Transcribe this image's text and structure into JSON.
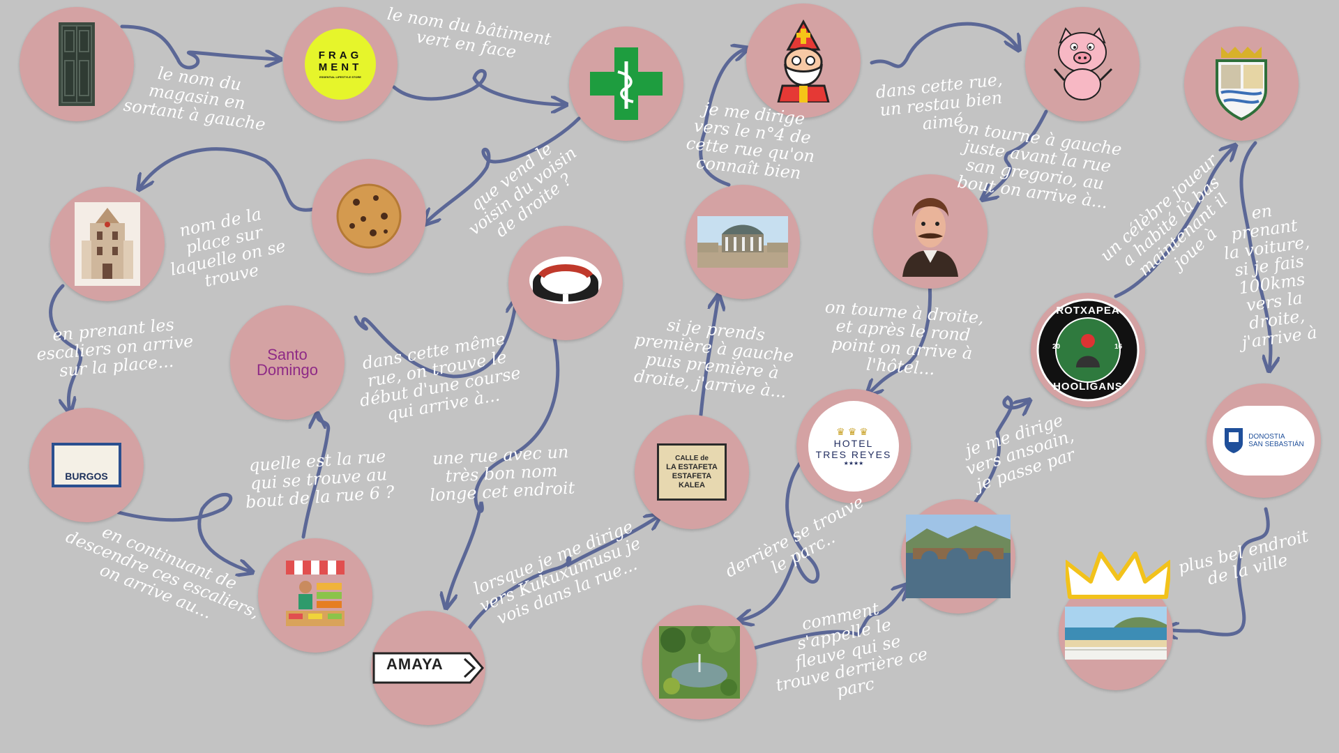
{
  "colors": {
    "background": "#c3c3c3",
    "node": "#d4a2a3",
    "arrow": "#5b6796",
    "text": "#ffffff"
  },
  "nodes": {
    "door": {
      "icon": "door-icon"
    },
    "fragment": {
      "icon": "fragment-logo",
      "text": "FRAG\nMENT",
      "tagline": "ESSENTIAL LIFESTYLE STORE"
    },
    "pharmacy": {
      "icon": "pharmacy-cross-icon"
    },
    "cookie": {
      "icon": "cookie-icon"
    },
    "townhall": {
      "icon": "town-hall-icon"
    },
    "santo": {
      "icon": "santo-domingo-logo",
      "line1": "Santo",
      "line2": "Domingo"
    },
    "bullring": {
      "icon": "bullring-icon"
    },
    "burgos": {
      "icon": "street-sign-icon",
      "text": "BURGOS"
    },
    "market": {
      "icon": "market-stall-icon"
    },
    "amaya": {
      "icon": "street-sign-icon",
      "text": "AMAYA"
    },
    "estafeta": {
      "icon": "street-sign-icon",
      "line1": "CALLE de",
      "line2": "LA ESTAFETA",
      "line3": "ESTAFETA",
      "line4": "KALEA"
    },
    "kiosk": {
      "icon": "bandstand-icon"
    },
    "bishop": {
      "icon": "bishop-icon"
    },
    "pig": {
      "icon": "pig-icon"
    },
    "portrait": {
      "icon": "portrait-icon"
    },
    "hotel": {
      "icon": "hotel-logo",
      "line1": "HOTEL",
      "line2": "TRES REYES",
      "stars": "★★★★"
    },
    "garden": {
      "icon": "garden-icon"
    },
    "bridge": {
      "icon": "bridge-icon"
    },
    "hooligans": {
      "icon": "hooligans-badge",
      "top": "ROTXAPEA",
      "bottom": "HOOLIGANS",
      "year_left": "20",
      "year_right": "16"
    },
    "shield": {
      "icon": "coat-of-arms-icon"
    },
    "donostia": {
      "icon": "donostia-logo",
      "line1": "DONOSTIA",
      "line2": "SAN SEBASTIÁN"
    },
    "beach": {
      "icon": "beach-icon"
    }
  },
  "clues": {
    "c1": "le nom du\nmagasin en\nsortant à gauche",
    "c2": "le nom du bâtiment\nvert en face",
    "c3": "que vend le\nvoisin du voisin\nde droite ?",
    "c4": "nom de la\nplace sur\nlaquelle on se\ntrouve",
    "c5": "en prenant les\nescaliers on arrive\nsur la place...",
    "c6": "dans cette même\nrue, on trouve le\ndébut d'une course\nqui arrive à...",
    "c7": "quelle est la rue\nqui se trouve au\nbout de la rue 6 ?",
    "c8": "en continuant de\ndescendre ces escaliers,\non arrive au...",
    "c9": "une rue avec un\ntrès bon nom\nlonge cet endroit",
    "c10": "lorsque je me dirige\nvers Kukuxumusu je\nvois dans la rue...",
    "c11": "si je prends\npremière à gauche\npuis première à\ndroite, j'arrive à...",
    "c12": "je me dirige\nvers le n°4 de\ncette rue qu'on\nconnaît bien",
    "c13": "dans cette rue,\nun restau bien\naimé",
    "c14": "on tourne à gauche\njuste avant la rue\nsan gregorio, au\nbout on arrive à...",
    "c15": "on tourne à droite,\net après le rond\npoint on arrive à\nl'hôtel...",
    "c16": "derrière se trouve\nle parc..",
    "c17": "comment\ns'appelle le\nfleuve qui se\ntrouve derrière ce\nparc",
    "c18": "je me dirige\nvers ansoain,\nje passe par",
    "c19": "un célèbre joueur\na habité là bas\nmaintenant il\njoue à",
    "c20": "en\nprenant\nla voiture,\nsi je fais\n100kms\nvers la\ndroite,\nj'arrive à",
    "c21": "plus bel endroit\nde la ville"
  }
}
